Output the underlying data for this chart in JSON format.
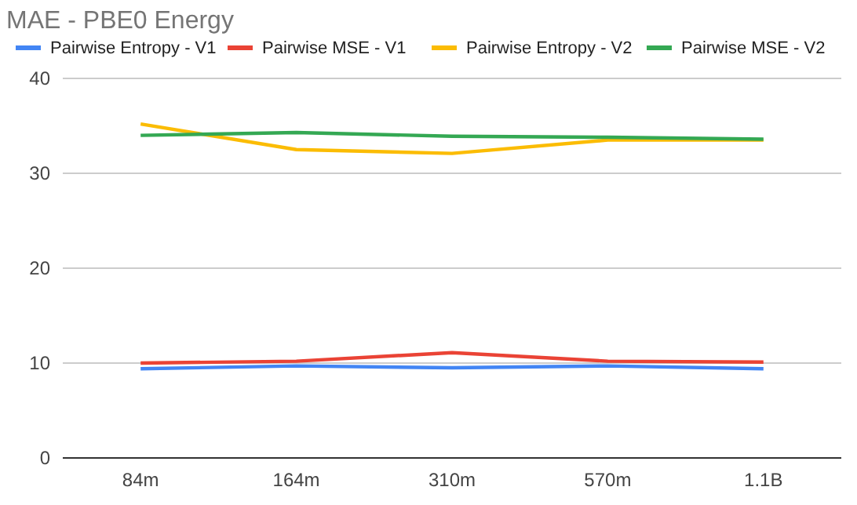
{
  "chart_data": {
    "type": "line",
    "title": "MAE - PBE0 Energy",
    "categories": [
      "84m",
      "164m",
      "310m",
      "570m",
      "1.1B"
    ],
    "series": [
      {
        "name": "Pairwise Entropy - V1",
        "color": "#4285f4",
        "values": [
          9.4,
          9.7,
          9.5,
          9.7,
          9.4
        ]
      },
      {
        "name": "Pairwise MSE - V1",
        "color": "#ea4335",
        "values": [
          10.0,
          10.2,
          11.1,
          10.2,
          10.1
        ]
      },
      {
        "name": "Pairwise Entropy - V2",
        "color": "#fbbc04",
        "values": [
          35.2,
          32.5,
          32.1,
          33.5,
          33.5
        ]
      },
      {
        "name": "Pairwise MSE - V2",
        "color": "#34a853",
        "values": [
          34.0,
          34.3,
          33.9,
          33.8,
          33.6
        ]
      }
    ],
    "ylim": [
      0,
      40
    ],
    "yticks": [
      0,
      10,
      20,
      30,
      40
    ],
    "grid": "y",
    "legend": "top",
    "marker": "none",
    "line_style": "solid"
  }
}
